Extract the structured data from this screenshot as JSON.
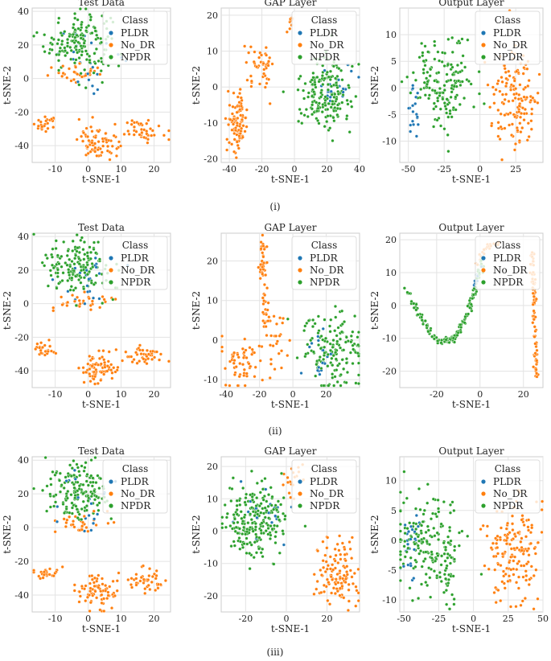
{
  "legend_title": "Class",
  "classes": [
    {
      "name": "PLDR",
      "color": "#1f77b4"
    },
    {
      "name": "No_DR",
      "color": "#ff7f0e"
    },
    {
      "name": "NPDR",
      "color": "#2ca02c"
    }
  ],
  "row_captions": [
    "(i)",
    "(ii)",
    "(iii)"
  ],
  "chart_data": [
    {
      "row": 0,
      "col": 0,
      "type": "scatter",
      "title": "Test Data",
      "xlabel": "t-SNE-1",
      "ylabel": "t-SNE-2",
      "xlim": [
        -17,
        25
      ],
      "ylim": [
        -50,
        42
      ],
      "xticks": [
        -10,
        0,
        10,
        20
      ],
      "yticks": [
        -40,
        -20,
        0,
        20,
        40
      ],
      "grid": true,
      "legend_position": "top-right",
      "clusters": [
        {
          "cls": "NPDR",
          "cx": -3,
          "cy": 22,
          "sx": 5,
          "sy": 9,
          "n": 160
        },
        {
          "cls": "PLDR",
          "cx": 1,
          "cy": 14,
          "sx": 5,
          "sy": 9,
          "n": 22
        },
        {
          "cls": "No_DR",
          "cx": -2,
          "cy": 2,
          "sx": 5,
          "sy": 3,
          "n": 30
        },
        {
          "cls": "No_DR",
          "cx": -13,
          "cy": -27,
          "sx": 2,
          "sy": 2,
          "n": 26
        },
        {
          "cls": "No_DR",
          "cx": 3,
          "cy": -38,
          "sx": 3,
          "sy": 5,
          "n": 75
        },
        {
          "cls": "No_DR",
          "cx": 17,
          "cy": -31,
          "sx": 3,
          "sy": 3,
          "n": 45
        }
      ]
    },
    {
      "row": 0,
      "col": 1,
      "type": "scatter",
      "title": "GAP Layer",
      "xlabel": "t-SNE-1",
      "ylabel": "t-SNE-2",
      "xlim": [
        -45,
        40
      ],
      "ylim": [
        -21,
        22
      ],
      "xticks": [
        -40,
        -20,
        0,
        20,
        40
      ],
      "yticks": [
        -20,
        -10,
        0,
        10,
        20
      ],
      "grid": true,
      "legend_position": "top-right",
      "clusters": [
        {
          "cls": "No_DR",
          "cx": -35,
          "cy": -10,
          "sx": 3,
          "sy": 4,
          "n": 95
        },
        {
          "cls": "No_DR",
          "cx": -20,
          "cy": 6,
          "sx": 4,
          "sy": 3,
          "n": 45
        },
        {
          "cls": "No_DR",
          "cx": -2,
          "cy": 18,
          "sx": 1.5,
          "sy": 1.5,
          "n": 10
        },
        {
          "cls": "NPDR",
          "cx": 18,
          "cy": -2,
          "sx": 8,
          "sy": 5,
          "n": 190
        },
        {
          "cls": "PLDR",
          "cx": 25,
          "cy": 1,
          "sx": 7,
          "sy": 3,
          "n": 20
        }
      ]
    },
    {
      "row": 0,
      "col": 2,
      "type": "scatter",
      "title": "Output Layer",
      "xlabel": "t-SNE-1",
      "ylabel": "t-SNE-2",
      "xlim": [
        -56,
        44
      ],
      "ylim": [
        -14,
        15
      ],
      "xticks": [
        -50,
        -25,
        0,
        25
      ],
      "yticks": [
        -10,
        -5,
        0,
        5,
        10
      ],
      "grid": true,
      "legend_position": "top-right",
      "clusters": [
        {
          "cls": "NPDR",
          "cx": -25,
          "cy": 1,
          "sx": 11,
          "sy": 4,
          "n": 160
        },
        {
          "cls": "PLDR",
          "cx": -46,
          "cy": -4,
          "sx": 2,
          "sy": 2.5,
          "n": 20
        },
        {
          "cls": "No_DR",
          "cx": 25,
          "cy": -2,
          "sx": 8,
          "sy": 5,
          "n": 140
        }
      ]
    },
    {
      "row": 1,
      "col": 0,
      "type": "scatter",
      "title": "Test Data",
      "xlabel": "t-SNE-1",
      "ylabel": "t-SNE-2",
      "xlim": [
        -17,
        25
      ],
      "ylim": [
        -50,
        42
      ],
      "xticks": [
        -10,
        0,
        10,
        20
      ],
      "yticks": [
        -40,
        -20,
        0,
        20,
        40
      ],
      "grid": true,
      "legend_position": "top-right",
      "clusters": [
        {
          "cls": "NPDR",
          "cx": -3,
          "cy": 22,
          "sx": 5,
          "sy": 9,
          "n": 160
        },
        {
          "cls": "PLDR",
          "cx": 1,
          "cy": 14,
          "sx": 5,
          "sy": 9,
          "n": 22
        },
        {
          "cls": "No_DR",
          "cx": -2,
          "cy": 2,
          "sx": 5,
          "sy": 3,
          "n": 30
        },
        {
          "cls": "No_DR",
          "cx": -13,
          "cy": -27,
          "sx": 2,
          "sy": 2,
          "n": 26
        },
        {
          "cls": "No_DR",
          "cx": 3,
          "cy": -38,
          "sx": 3,
          "sy": 5,
          "n": 75
        },
        {
          "cls": "No_DR",
          "cx": 17,
          "cy": -31,
          "sx": 3,
          "sy": 3,
          "n": 45
        }
      ]
    },
    {
      "row": 1,
      "col": 1,
      "type": "scatter",
      "title": "GAP Layer",
      "xlabel": "t-SNE-1",
      "ylabel": "t-SNE-2",
      "xlim": [
        -43,
        40
      ],
      "ylim": [
        -12,
        27
      ],
      "xticks": [
        -40,
        -20,
        0,
        20
      ],
      "yticks": [
        -10,
        0,
        10,
        20
      ],
      "grid": true,
      "legend_position": "top-right",
      "clusters": [
        {
          "cls": "No_DR",
          "cx": -18,
          "cy": 21,
          "sx": 1.2,
          "sy": 3,
          "n": 35
        },
        {
          "cls": "No_DR",
          "cx": -17,
          "cy": 8,
          "sx": 1.2,
          "sy": 4,
          "n": 25
        },
        {
          "cls": "No_DR",
          "cx": -30,
          "cy": -6,
          "sx": 6,
          "sy": 3,
          "n": 60
        },
        {
          "cls": "No_DR",
          "cx": -10,
          "cy": 0,
          "sx": 3,
          "sy": 4,
          "n": 25
        },
        {
          "cls": "NPDR",
          "cx": 25,
          "cy": -2,
          "sx": 9,
          "sy": 5,
          "n": 150
        },
        {
          "cls": "PLDR",
          "cx": 14,
          "cy": -4,
          "sx": 4,
          "sy": 3,
          "n": 18
        }
      ]
    },
    {
      "row": 1,
      "col": 2,
      "type": "scatter",
      "title": "Output Layer",
      "xlabel": "t-SNE-1",
      "ylabel": "t-SNE-2",
      "xlim": [
        -37,
        29
      ],
      "ylim": [
        -25,
        22
      ],
      "xticks": [
        -20,
        0,
        20
      ],
      "yticks": [
        -20,
        -10,
        0,
        10,
        20
      ],
      "grid": true,
      "legend_position": "top-right",
      "curves": [
        {
          "cls": "NPDR",
          "n": 160,
          "pts": [
            [
              -34,
              5
            ],
            [
              -28,
              -3
            ],
            [
              -20,
              -11
            ],
            [
              -12,
              -10
            ],
            [
              -6,
              -3
            ],
            [
              -2,
              5
            ],
            [
              1,
              14
            ]
          ]
        },
        {
          "cls": "PLDR",
          "n": 10,
          "pts": [
            [
              -4,
              2
            ],
            [
              0,
              12
            ]
          ]
        },
        {
          "cls": "No_DR",
          "n": 25,
          "pts": [
            [
              -2,
              12
            ],
            [
              3,
              18
            ],
            [
              8,
              19
            ]
          ]
        },
        {
          "cls": "No_DR",
          "n": 90,
          "pts": [
            [
              24,
              17
            ],
            [
              25,
              0
            ],
            [
              26,
              -22
            ]
          ]
        }
      ]
    },
    {
      "row": 2,
      "col": 0,
      "type": "scatter",
      "title": "Test Data",
      "xlabel": "t-SNE-1",
      "ylabel": "t-SNE-2",
      "xlim": [
        -17,
        25
      ],
      "ylim": [
        -50,
        42
      ],
      "xticks": [
        -10,
        0,
        10,
        20
      ],
      "yticks": [
        -40,
        -20,
        0,
        20,
        40
      ],
      "grid": true,
      "legend_position": "top-right",
      "clusters": [
        {
          "cls": "NPDR",
          "cx": -3,
          "cy": 22,
          "sx": 5,
          "sy": 9,
          "n": 160
        },
        {
          "cls": "PLDR",
          "cx": 1,
          "cy": 14,
          "sx": 5,
          "sy": 9,
          "n": 22
        },
        {
          "cls": "No_DR",
          "cx": -2,
          "cy": 2,
          "sx": 5,
          "sy": 3,
          "n": 30
        },
        {
          "cls": "No_DR",
          "cx": -13,
          "cy": -27,
          "sx": 2,
          "sy": 2,
          "n": 26
        },
        {
          "cls": "No_DR",
          "cx": 3,
          "cy": -38,
          "sx": 3,
          "sy": 5,
          "n": 75
        },
        {
          "cls": "No_DR",
          "cx": 17,
          "cy": -31,
          "sx": 3,
          "sy": 3,
          "n": 45
        }
      ]
    },
    {
      "row": 2,
      "col": 1,
      "type": "scatter",
      "title": "GAP Layer",
      "xlabel": "t-SNE-1",
      "ylabel": "t-SNE-2",
      "xlim": [
        -32,
        36
      ],
      "ylim": [
        -25,
        23
      ],
      "xticks": [
        -20,
        0,
        20
      ],
      "yticks": [
        -20,
        -10,
        0,
        10,
        20
      ],
      "grid": true,
      "legend_position": "top-right",
      "clusters": [
        {
          "cls": "NPDR",
          "cx": -15,
          "cy": 3,
          "sx": 8,
          "sy": 6,
          "n": 220
        },
        {
          "cls": "PLDR",
          "cx": -10,
          "cy": 6,
          "sx": 6,
          "sy": 5,
          "n": 20
        },
        {
          "cls": "No_DR",
          "cx": 25,
          "cy": -13,
          "sx": 5,
          "sy": 5,
          "n": 120
        },
        {
          "cls": "No_DR",
          "cx": 3,
          "cy": 16,
          "sx": 4,
          "sy": 3,
          "n": 20
        }
      ]
    },
    {
      "row": 2,
      "col": 2,
      "type": "scatter",
      "title": "Output Layer",
      "xlabel": "t-SNE-1",
      "ylabel": "t-SNE-2",
      "xlim": [
        -53,
        50
      ],
      "ylim": [
        -12,
        14
      ],
      "xticks": [
        -50,
        -25,
        0,
        25,
        50
      ],
      "yticks": [
        -10,
        -5,
        0,
        5,
        10
      ],
      "grid": true,
      "legend_position": "top-right",
      "clusters": [
        {
          "cls": "NPDR",
          "cx": -35,
          "cy": 0,
          "sx": 12,
          "sy": 4,
          "n": 150
        },
        {
          "cls": "NPDR",
          "cx": -18,
          "cy": -5,
          "sx": 3,
          "sy": 4,
          "n": 45
        },
        {
          "cls": "PLDR",
          "cx": -45,
          "cy": 0,
          "sx": 4,
          "sy": 3,
          "n": 25
        },
        {
          "cls": "No_DR",
          "cx": 30,
          "cy": -2,
          "sx": 10,
          "sy": 4,
          "n": 160
        }
      ]
    }
  ]
}
